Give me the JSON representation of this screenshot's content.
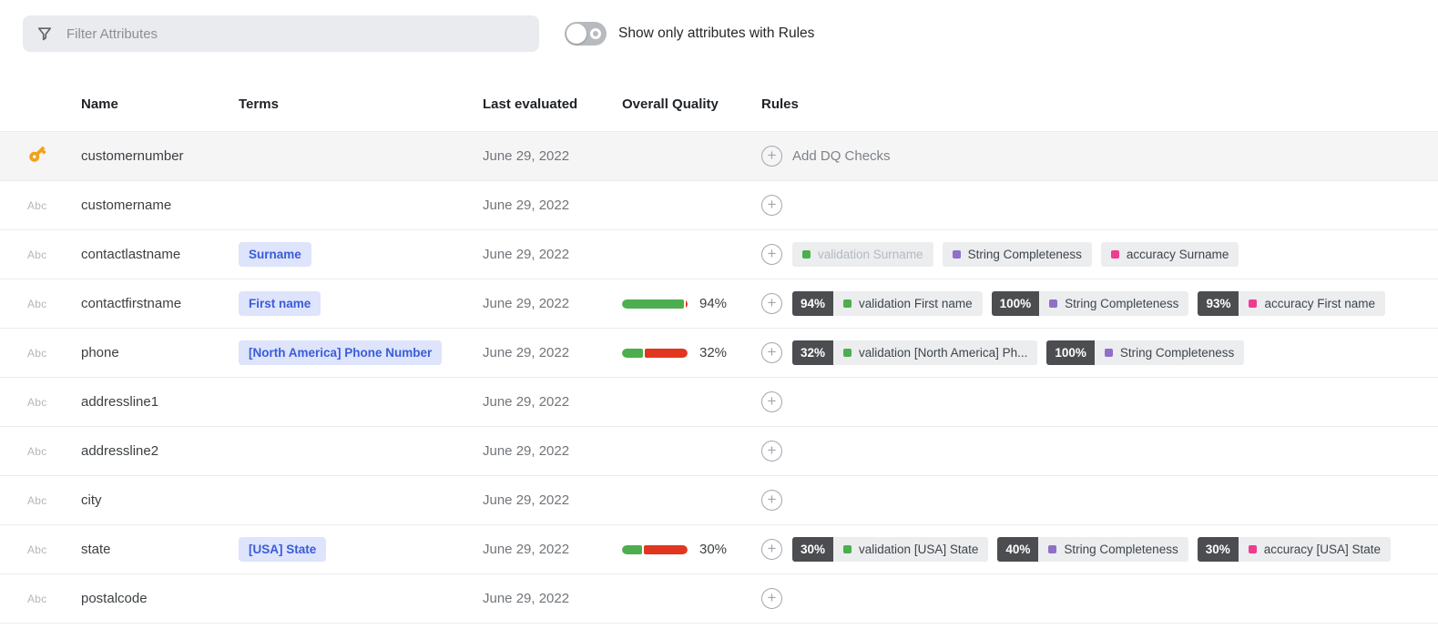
{
  "filter": {
    "placeholder": "Filter Attributes"
  },
  "toggle": {
    "label": "Show only attributes with Rules",
    "state": "off"
  },
  "table": {
    "headers": {
      "name": "Name",
      "terms": "Terms",
      "last_evaluated": "Last evaluated",
      "overall_quality": "Overall Quality",
      "rules": "Rules"
    },
    "abc_label": "Abc",
    "add_rule_label": "Add DQ Checks",
    "rows": [
      {
        "type_icon": "key-icon",
        "name": "customernumber",
        "term": null,
        "last_evaluated": "June 29, 2022",
        "quality_percent": null,
        "quality_label": null,
        "show_add_label": true,
        "highlighted": true,
        "rules": []
      },
      {
        "type_icon": "abc-icon",
        "name": "customername",
        "term": null,
        "last_evaluated": "June 29, 2022",
        "quality_percent": null,
        "quality_label": null,
        "show_add_label": false,
        "highlighted": false,
        "rules": []
      },
      {
        "type_icon": "abc-icon",
        "name": "contactlastname",
        "term": "Surname",
        "last_evaluated": "June 29, 2022",
        "quality_percent": null,
        "quality_label": null,
        "show_add_label": false,
        "highlighted": false,
        "rules": [
          {
            "score": null,
            "dot": "green",
            "label": "validation Surname",
            "muted": true
          },
          {
            "score": null,
            "dot": "purple",
            "label": "String Completeness",
            "muted": false
          },
          {
            "score": null,
            "dot": "pink",
            "label": "accuracy Surname",
            "muted": false
          }
        ]
      },
      {
        "type_icon": "abc-icon",
        "name": "contactfirstname",
        "term": "First name",
        "last_evaluated": "June 29, 2022",
        "quality_percent": 94,
        "quality_label": "94%",
        "show_add_label": false,
        "highlighted": false,
        "rules": [
          {
            "score": "94%",
            "dot": "green",
            "label": "validation First name",
            "muted": false
          },
          {
            "score": "100%",
            "dot": "purple",
            "label": "String Completeness",
            "muted": false
          },
          {
            "score": "93%",
            "dot": "pink",
            "label": "accuracy First name",
            "muted": false
          }
        ]
      },
      {
        "type_icon": "abc-icon",
        "name": "phone",
        "term": "[North America] Phone Number",
        "last_evaluated": "June 29, 2022",
        "quality_percent": 32,
        "quality_label": "32%",
        "show_add_label": false,
        "highlighted": false,
        "rules": [
          {
            "score": "32%",
            "dot": "green",
            "label": "validation [North America] Ph...",
            "muted": false
          },
          {
            "score": "100%",
            "dot": "purple",
            "label": "String Completeness",
            "muted": false
          }
        ]
      },
      {
        "type_icon": "abc-icon",
        "name": "addressline1",
        "term": null,
        "last_evaluated": "June 29, 2022",
        "quality_percent": null,
        "quality_label": null,
        "show_add_label": false,
        "highlighted": false,
        "rules": []
      },
      {
        "type_icon": "abc-icon",
        "name": "addressline2",
        "term": null,
        "last_evaluated": "June 29, 2022",
        "quality_percent": null,
        "quality_label": null,
        "show_add_label": false,
        "highlighted": false,
        "rules": []
      },
      {
        "type_icon": "abc-icon",
        "name": "city",
        "term": null,
        "last_evaluated": "June 29, 2022",
        "quality_percent": null,
        "quality_label": null,
        "show_add_label": false,
        "highlighted": false,
        "rules": []
      },
      {
        "type_icon": "abc-icon",
        "name": "state",
        "term": "[USA] State",
        "last_evaluated": "June 29, 2022",
        "quality_percent": 30,
        "quality_label": "30%",
        "show_add_label": false,
        "highlighted": false,
        "rules": [
          {
            "score": "30%",
            "dot": "green",
            "label": "validation [USA] State",
            "muted": false
          },
          {
            "score": "40%",
            "dot": "purple",
            "label": "String Completeness",
            "muted": false
          },
          {
            "score": "30%",
            "dot": "pink",
            "label": "accuracy [USA] State",
            "muted": false
          }
        ]
      },
      {
        "type_icon": "abc-icon",
        "name": "postalcode",
        "term": null,
        "last_evaluated": "June 29, 2022",
        "quality_percent": null,
        "quality_label": null,
        "show_add_label": false,
        "highlighted": false,
        "rules": []
      }
    ]
  },
  "colors": {
    "term_blue": "#3a5cd8",
    "term_bg": "#dde4fb",
    "green": "#4cae4f",
    "red": "#e1361f",
    "purple": "#8f6fc8",
    "pink": "#ee3d8f",
    "badge_dark": "#4b4d50",
    "chip_bg": "#ebedef",
    "key_orange": "#f0a11e"
  }
}
